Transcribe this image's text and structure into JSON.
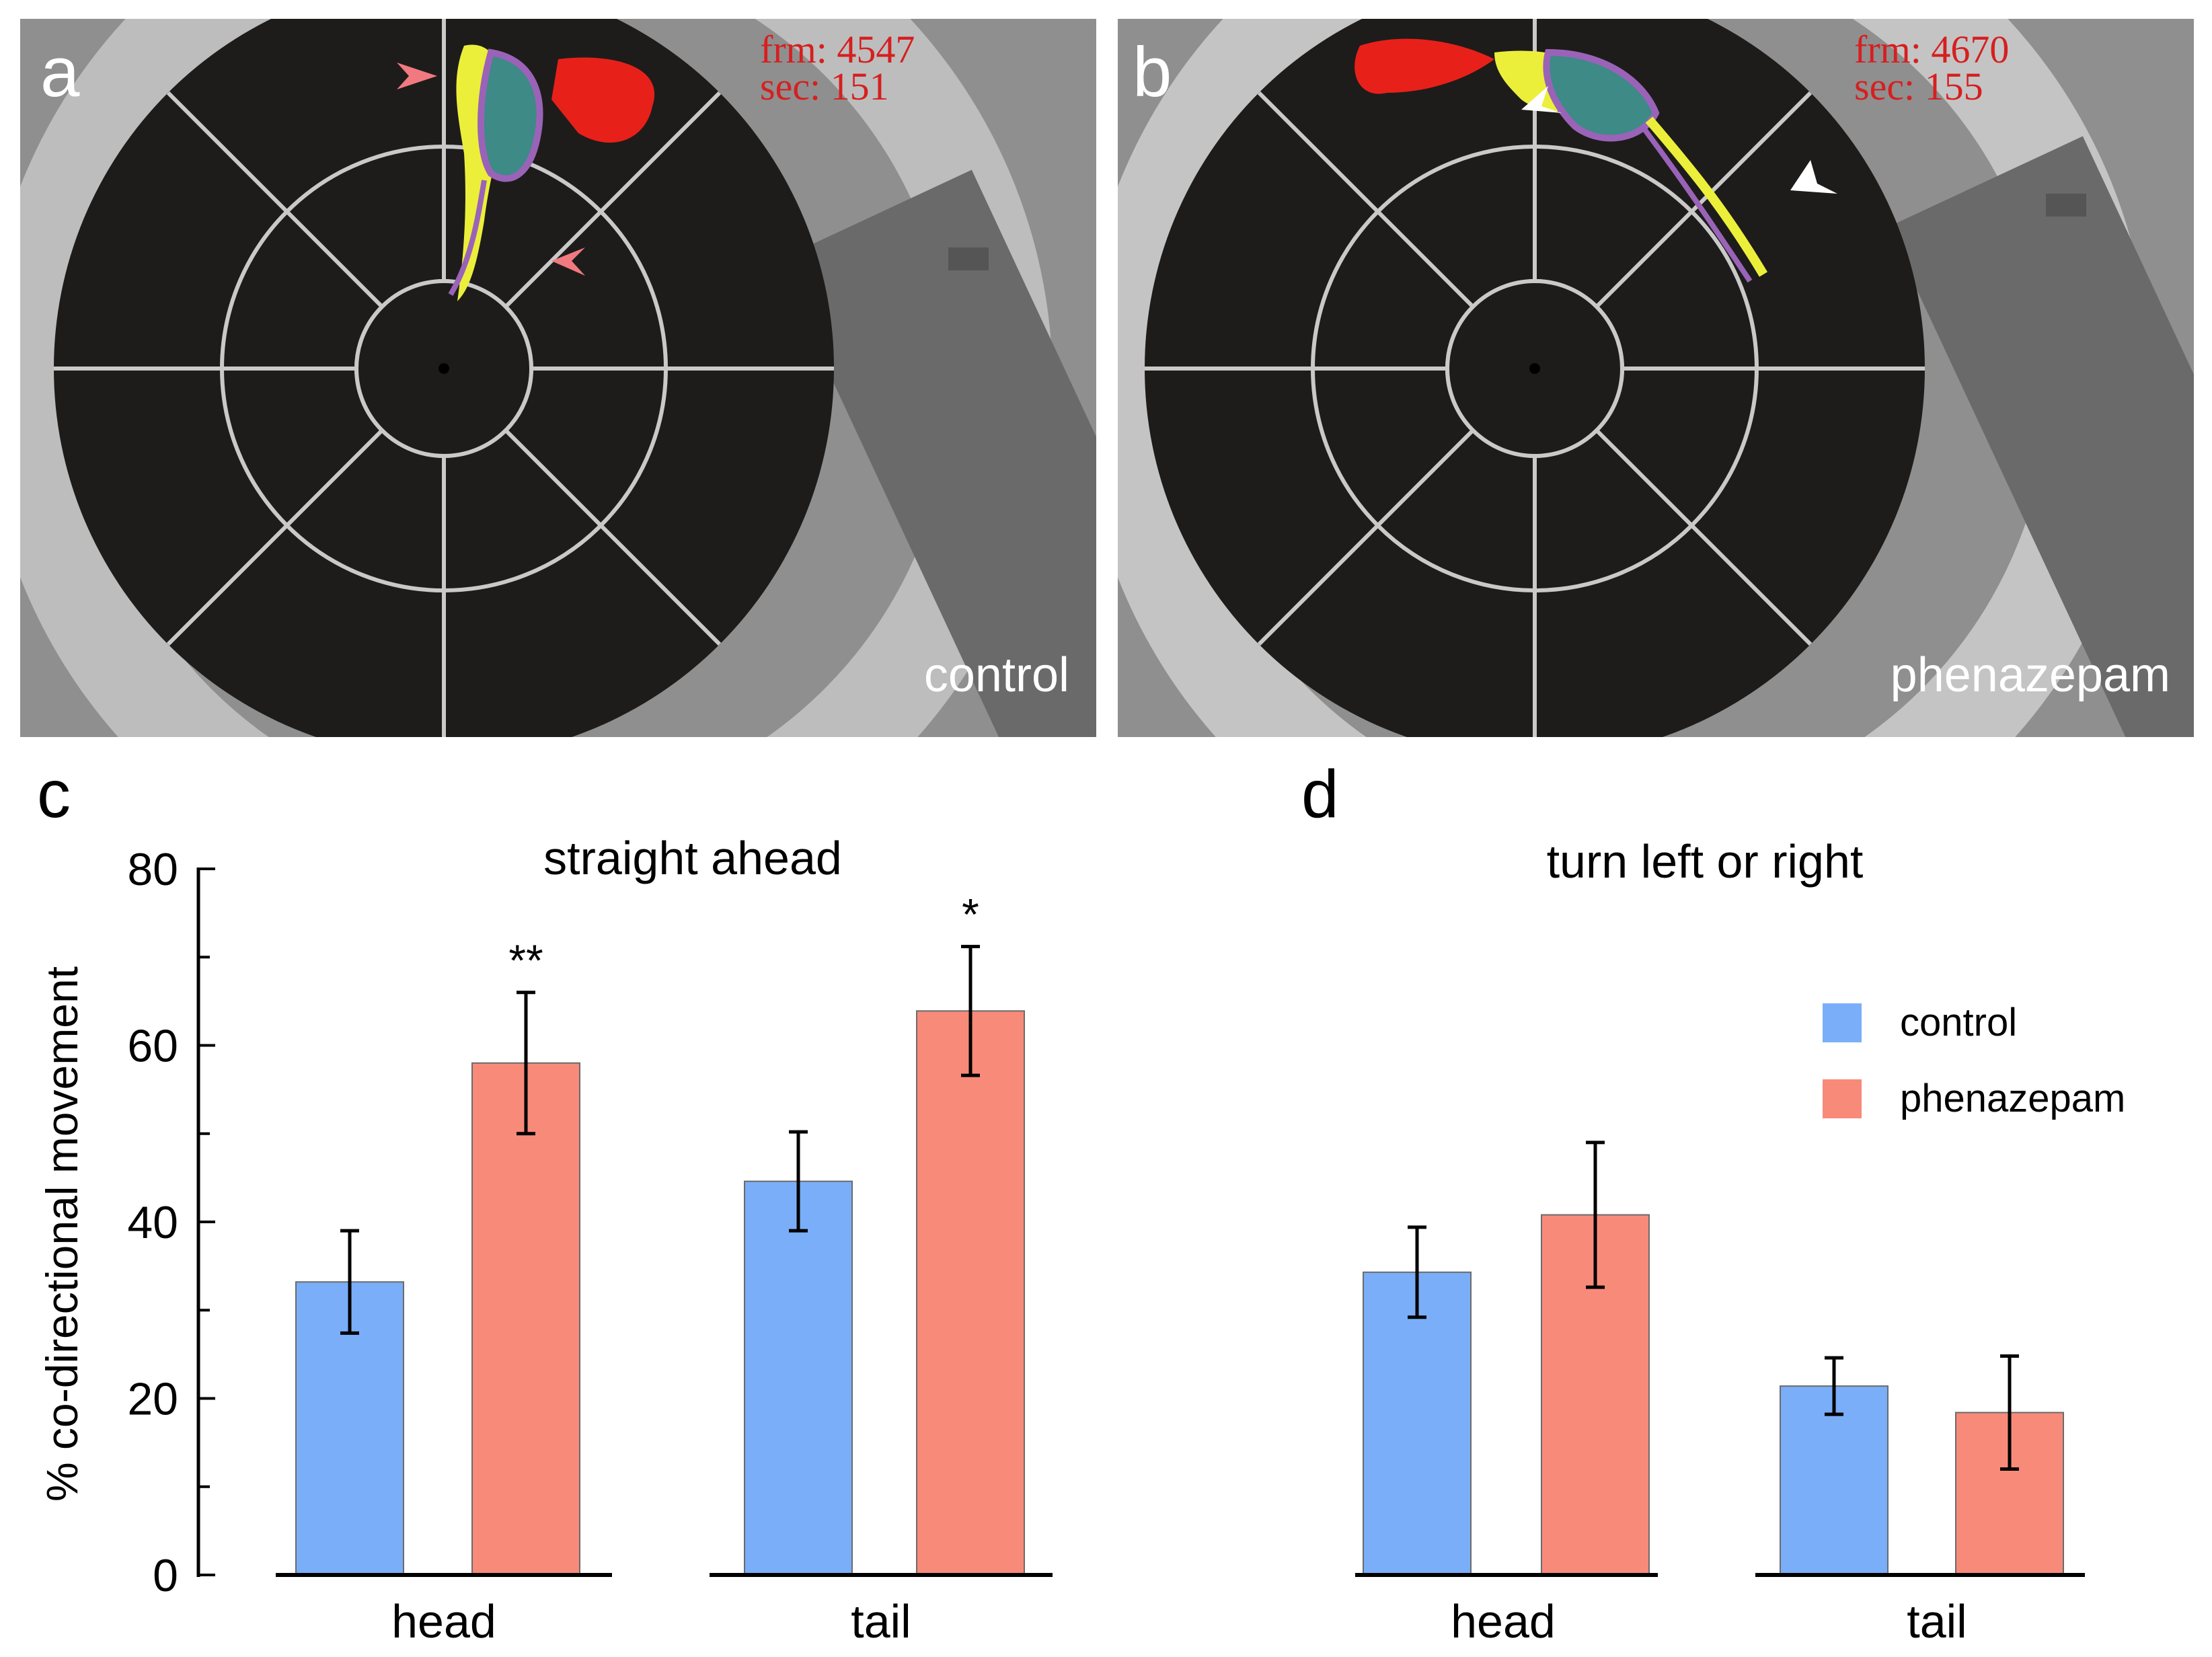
{
  "photo_panels": [
    {
      "letter": "a",
      "condition_label": "control",
      "frm_text": "frm: 4547",
      "sec_text": "sec: 151",
      "arrow_color": "#f07a80"
    },
    {
      "letter": "b",
      "condition_label": "phenazepam",
      "frm_text": "frm: 4670",
      "sec_text": "sec: 155",
      "arrow_color": "#ffffff"
    }
  ],
  "colors": {
    "control": "#7aaef8",
    "phenazepam": "#f88a7a",
    "arena": "#1d1c1a",
    "floor": "#8f8f8f",
    "rat_red": "#e8201a",
    "rat_yellow": "#ecef3a",
    "rat_body": "#3d8a86",
    "rat_purple": "#9a63b8"
  },
  "chart_data": [
    {
      "panel": "c",
      "type": "bar",
      "title": "straight ahead",
      "ylabel": "% co-directional movement",
      "xlabel": "",
      "ylim": [
        0,
        80
      ],
      "yticks": [
        0,
        20,
        40,
        60,
        80
      ],
      "categories": [
        "head",
        "tail"
      ],
      "series": [
        {
          "name": "control",
          "values": [
            33.2,
            44.6
          ],
          "errors": [
            5.8,
            5.6
          ]
        },
        {
          "name": "phenazepam",
          "values": [
            58.0,
            63.9
          ],
          "errors": [
            8.0,
            7.3
          ]
        }
      ],
      "significance": [
        {
          "category": "head",
          "series": "phenazepam",
          "label": "**"
        },
        {
          "category": "tail",
          "series": "phenazepam",
          "label": "*"
        }
      ]
    },
    {
      "panel": "d",
      "type": "bar",
      "title": "turn left or right",
      "ylabel": "",
      "xlabel": "",
      "ylim": [
        0,
        80
      ],
      "categories": [
        "head",
        "tail"
      ],
      "series": [
        {
          "name": "control",
          "values": [
            34.3,
            21.4
          ],
          "errors": [
            5.1,
            3.2
          ]
        },
        {
          "name": "phenazepam",
          "values": [
            40.8,
            18.4
          ],
          "errors": [
            8.2,
            6.4
          ]
        }
      ],
      "legend": {
        "position": "top-right",
        "entries": [
          "control",
          "phenazepam"
        ]
      }
    }
  ]
}
